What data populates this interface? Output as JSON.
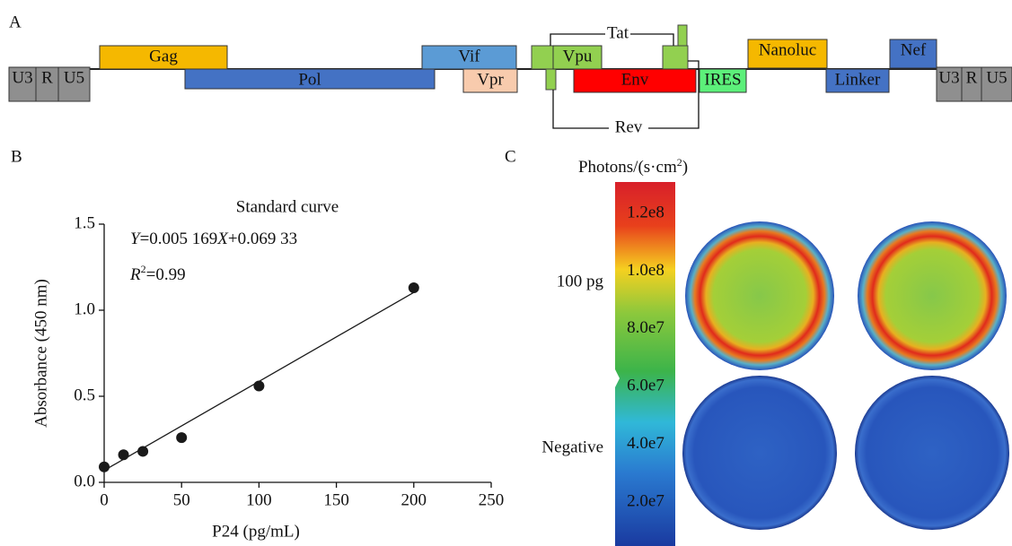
{
  "panel_a": {
    "label": "A",
    "genes": [
      {
        "label": "U3"
      },
      {
        "label": "R"
      },
      {
        "label": "U5"
      },
      {
        "label": "Gag"
      },
      {
        "label": "Pol"
      },
      {
        "label": "Vif"
      },
      {
        "label": "Vpr"
      },
      {
        "label": "Vpu"
      },
      {
        "label": "Env"
      },
      {
        "label": "IRES"
      },
      {
        "label": "Nanoluc"
      },
      {
        "label": "Linker"
      },
      {
        "label": "Nef"
      },
      {
        "label": "U3"
      },
      {
        "label": "R"
      },
      {
        "label": "U5"
      }
    ],
    "tat": "Tat",
    "rev": "Rev"
  },
  "chart_data": {
    "type": "scatter",
    "panel_label": "B",
    "title": "Standard curve",
    "equation": [
      "Y",
      "=0.005 169",
      "X",
      "+0.069 33"
    ],
    "r_squared": [
      "R",
      "2",
      "=0.99"
    ],
    "x_label": "P24 (pg/mL)",
    "y_label": "Absorbance (450 nm)",
    "x": [
      0,
      12.5,
      25,
      50,
      100,
      200
    ],
    "values": [
      0.09,
      0.16,
      0.18,
      0.26,
      0.56,
      1.13
    ],
    "color": "#1a1a1a",
    "fit_line": {
      "x": [
        0,
        200
      ],
      "y": [
        0.06933,
        1.10313
      ]
    },
    "xlim": [
      0,
      250
    ],
    "xticks": [
      0,
      50,
      100,
      150,
      200,
      250
    ],
    "ylim": [
      0,
      1.5
    ],
    "yticks": [
      {
        "value": 0,
        "label": "0.0"
      },
      0.5,
      {
        "value": 1,
        "label": "1.0"
      },
      1.5
    ]
  },
  "panel_c": {
    "label": "C",
    "title": [
      "Photons/(s·cm",
      "2",
      ")"
    ],
    "colorbar_ticks": [
      {
        "value": 120000000,
        "label": "1.2e8"
      },
      {
        "value": 100000000,
        "label": "1.0e8"
      },
      {
        "value": 80000000,
        "label": "8.0e7"
      },
      {
        "value": 60000000,
        "label": "6.0e7"
      },
      {
        "value": 40000000,
        "label": "4.0e7"
      },
      {
        "value": 20000000,
        "label": "2.0e7"
      }
    ],
    "rows": [
      "100 pg",
      "Negative"
    ]
  }
}
